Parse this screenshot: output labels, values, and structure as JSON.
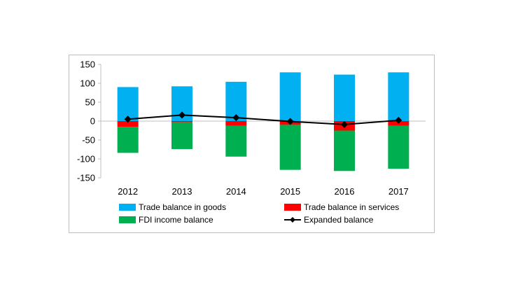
{
  "chart_data": {
    "type": "bar",
    "stacked": true,
    "categories": [
      "2012",
      "2013",
      "2014",
      "2015",
      "2016",
      "2017"
    ],
    "ylim": [
      -150,
      150
    ],
    "yticks": [
      150,
      100,
      50,
      0,
      -50,
      -100,
      -150
    ],
    "grid": false,
    "legend_position": "bottom",
    "series": [
      {
        "name": "Trade balance in goods",
        "kind": "bar",
        "color": "#00b0f0",
        "values": [
          90,
          92,
          104,
          129,
          123,
          129
        ]
      },
      {
        "name": "Trade balance in services",
        "kind": "bar",
        "color": "#ff0000",
        "values": [
          -15,
          -3,
          -12,
          -10,
          -25,
          -12
        ]
      },
      {
        "name": "FDI income balance",
        "kind": "bar",
        "color": "#00b050",
        "values": [
          -69,
          -71,
          -82,
          -119,
          -107,
          -114
        ]
      },
      {
        "name": "Expanded balance",
        "kind": "line",
        "color": "#000000",
        "values": [
          5,
          16,
          9,
          -1,
          -9,
          2
        ]
      }
    ]
  }
}
